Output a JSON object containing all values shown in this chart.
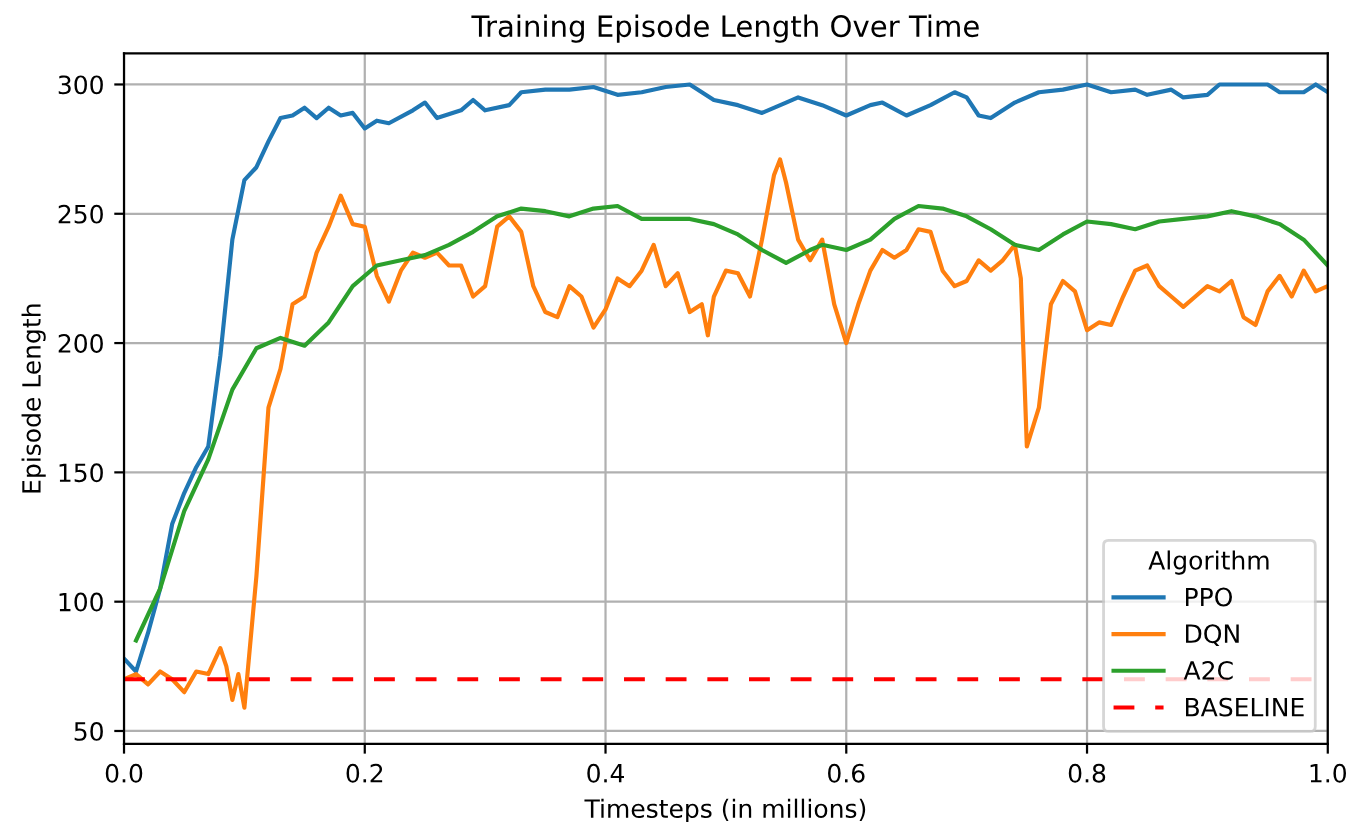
{
  "chart_data": {
    "type": "line",
    "title": "Training Episode Length Over Time",
    "xlabel": "Timesteps (in millions)",
    "ylabel": "Episode Length",
    "legend_title": "Algorithm",
    "legend": "bottom right",
    "grid": true,
    "xlim": [
      0,
      1
    ],
    "xticks": [
      {
        "value": 0,
        "label": "0.0"
      },
      0.2,
      0.4,
      0.6,
      0.8,
      {
        "value": 1,
        "label": "1.0"
      }
    ],
    "ylim": [
      45,
      312
    ],
    "yticks": [
      50,
      100,
      150,
      200,
      250,
      300
    ],
    "series": [
      {
        "name": "PPO",
        "color": "#1f77b4",
        "x": [
          0,
          0.01,
          0.02,
          0.03,
          0.04,
          0.05,
          0.06,
          0.07,
          0.08,
          0.09,
          0.1,
          0.11,
          0.12,
          0.13,
          0.14,
          0.15,
          0.16,
          0.17,
          0.18,
          0.19,
          0.2,
          0.21,
          0.22,
          0.24,
          0.25,
          0.26,
          0.28,
          0.29,
          0.3,
          0.32,
          0.33,
          0.35,
          0.37,
          0.39,
          0.41,
          0.43,
          0.45,
          0.47,
          0.49,
          0.51,
          0.53,
          0.55,
          0.56,
          0.58,
          0.6,
          0.62,
          0.63,
          0.65,
          0.67,
          0.69,
          0.7,
          0.71,
          0.72,
          0.74,
          0.76,
          0.78,
          0.8,
          0.82,
          0.84,
          0.85,
          0.87,
          0.88,
          0.9,
          0.91,
          0.93,
          0.95,
          0.96,
          0.98,
          0.99,
          1.0
        ],
        "values": [
          78,
          73,
          88,
          105,
          130,
          142,
          152,
          160,
          195,
          240,
          263,
          268,
          278,
          287,
          288,
          291,
          287,
          291,
          288,
          289,
          283,
          286,
          285,
          290,
          293,
          287,
          290,
          294,
          290,
          292,
          297,
          298,
          298,
          299,
          296,
          297,
          299,
          300,
          294,
          292,
          289,
          293,
          295,
          292,
          288,
          292,
          293,
          288,
          292,
          297,
          295,
          288,
          287,
          293,
          297,
          298,
          300,
          297,
          298,
          296,
          298,
          295,
          296,
          300,
          300,
          300,
          297,
          297,
          300,
          297
        ]
      },
      {
        "name": "DQN",
        "color": "#ff7f0e",
        "x": [
          0,
          0.01,
          0.02,
          0.03,
          0.04,
          0.05,
          0.06,
          0.07,
          0.08,
          0.085,
          0.09,
          0.095,
          0.1,
          0.11,
          0.12,
          0.13,
          0.14,
          0.15,
          0.16,
          0.17,
          0.18,
          0.19,
          0.2,
          0.21,
          0.22,
          0.23,
          0.24,
          0.25,
          0.26,
          0.27,
          0.28,
          0.29,
          0.3,
          0.31,
          0.32,
          0.33,
          0.34,
          0.35,
          0.36,
          0.37,
          0.38,
          0.39,
          0.4,
          0.41,
          0.42,
          0.43,
          0.44,
          0.45,
          0.46,
          0.47,
          0.48,
          0.485,
          0.49,
          0.5,
          0.51,
          0.52,
          0.53,
          0.54,
          0.545,
          0.55,
          0.56,
          0.57,
          0.58,
          0.59,
          0.6,
          0.61,
          0.62,
          0.63,
          0.64,
          0.65,
          0.66,
          0.67,
          0.68,
          0.69,
          0.7,
          0.71,
          0.72,
          0.73,
          0.74,
          0.745,
          0.75,
          0.76,
          0.77,
          0.78,
          0.79,
          0.8,
          0.81,
          0.82,
          0.83,
          0.84,
          0.85,
          0.86,
          0.87,
          0.88,
          0.89,
          0.9,
          0.91,
          0.92,
          0.93,
          0.94,
          0.95,
          0.96,
          0.97,
          0.98,
          0.99,
          1.0
        ],
        "values": [
          70,
          72,
          68,
          73,
          70,
          65,
          73,
          72,
          82,
          75,
          62,
          72,
          59,
          110,
          175,
          190,
          215,
          218,
          235,
          245,
          257,
          246,
          245,
          226,
          216,
          228,
          235,
          233,
          235,
          230,
          230,
          218,
          222,
          245,
          249,
          243,
          222,
          212,
          210,
          222,
          218,
          206,
          213,
          225,
          222,
          228,
          238,
          222,
          227,
          212,
          215,
          203,
          218,
          228,
          227,
          218,
          240,
          265,
          271,
          262,
          240,
          232,
          240,
          215,
          200,
          215,
          228,
          236,
          233,
          236,
          244,
          243,
          228,
          222,
          224,
          232,
          228,
          232,
          238,
          225,
          160,
          175,
          215,
          224,
          220,
          205,
          208,
          207,
          218,
          228,
          230,
          222,
          218,
          214,
          218,
          222,
          220,
          224,
          210,
          207,
          220,
          226,
          218,
          228,
          220,
          222
        ]
      },
      {
        "name": "A2C",
        "color": "#2ca02c",
        "x": [
          0.01,
          0.03,
          0.05,
          0.07,
          0.09,
          0.11,
          0.13,
          0.15,
          0.17,
          0.19,
          0.21,
          0.23,
          0.25,
          0.27,
          0.29,
          0.31,
          0.33,
          0.35,
          0.37,
          0.39,
          0.41,
          0.43,
          0.45,
          0.47,
          0.49,
          0.51,
          0.53,
          0.55,
          0.57,
          0.58,
          0.6,
          0.62,
          0.64,
          0.66,
          0.68,
          0.7,
          0.72,
          0.74,
          0.76,
          0.78,
          0.8,
          0.82,
          0.84,
          0.86,
          0.88,
          0.9,
          0.92,
          0.94,
          0.96,
          0.98,
          1.0
        ],
        "values": [
          85,
          105,
          135,
          155,
          182,
          198,
          202,
          199,
          208,
          222,
          230,
          232,
          234,
          238,
          243,
          249,
          252,
          251,
          249,
          252,
          253,
          248,
          248,
          248,
          246,
          242,
          236,
          231,
          236,
          238,
          236,
          240,
          248,
          253,
          252,
          249,
          244,
          238,
          236,
          242,
          247,
          246,
          244,
          247,
          248,
          249,
          251,
          249,
          246,
          240,
          230
        ]
      }
    ],
    "ref_lines": [
      {
        "axis": "y",
        "value": 70,
        "label": "BASELINE",
        "color": "#ff0000",
        "line_style": "dashed"
      }
    ]
  }
}
